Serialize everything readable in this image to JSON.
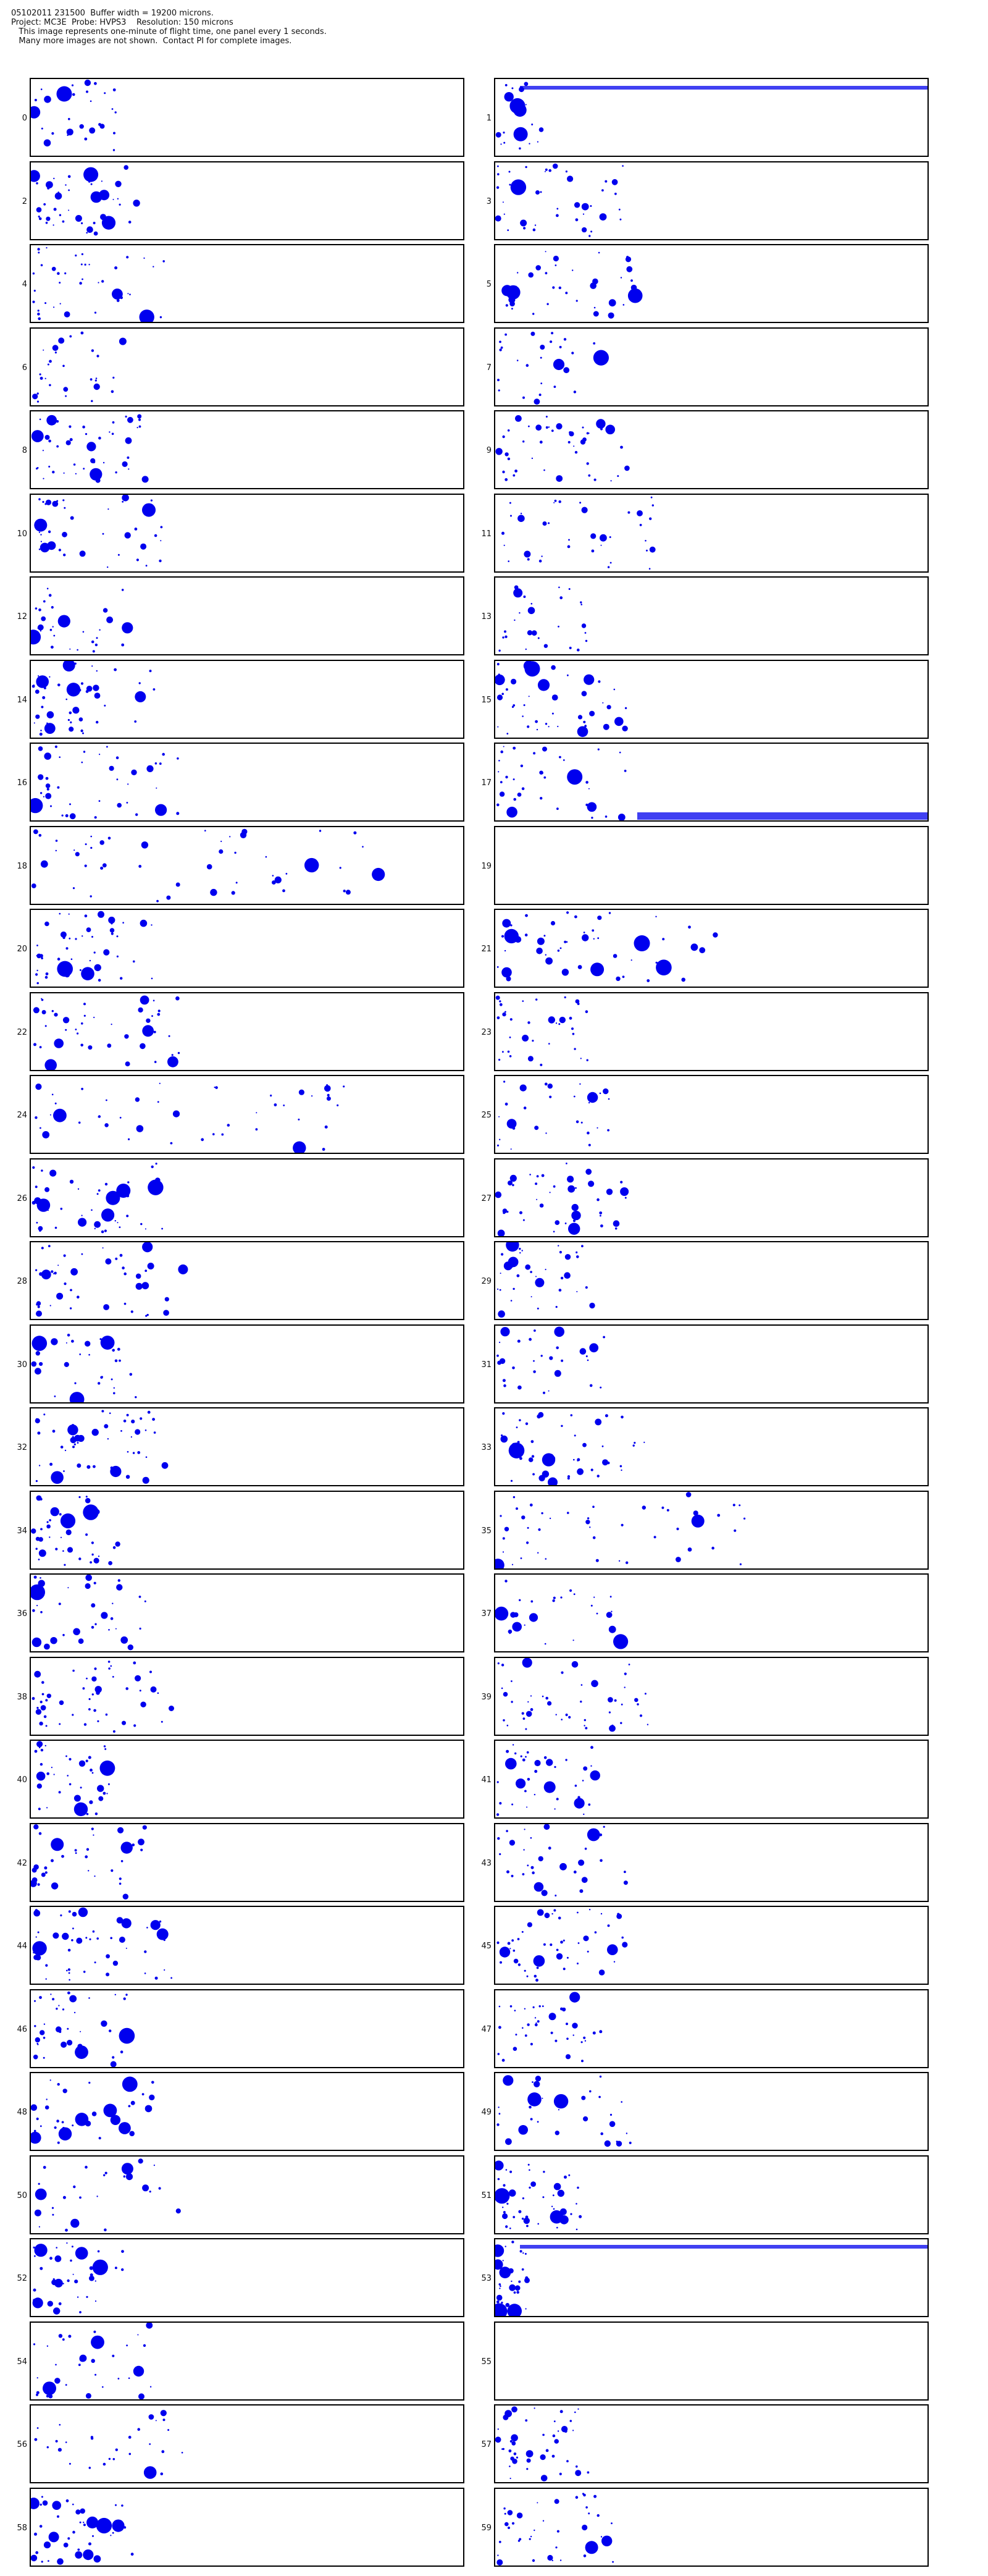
{
  "header": {
    "line1": "05102011 231500  Buffer width = 19200 microns.",
    "line2": "Project: MC3E  Probe: HVPS3    Resolution: 150 microns",
    "line3": "   This image represents one-minute of flight time, one panel every 1 seconds.",
    "line4": "   Many more images are not shown.  Contact PI for complete images."
  },
  "panels": [
    {
      "label": "0"
    },
    {
      "label": "1"
    },
    {
      "label": "2"
    },
    {
      "label": "3"
    },
    {
      "label": "4"
    },
    {
      "label": "5"
    },
    {
      "label": "6"
    },
    {
      "label": "7"
    },
    {
      "label": "8"
    },
    {
      "label": "9"
    },
    {
      "label": "10"
    },
    {
      "label": "11"
    },
    {
      "label": "12"
    },
    {
      "label": "13"
    },
    {
      "label": "14"
    },
    {
      "label": "15"
    },
    {
      "label": "16"
    },
    {
      "label": "17"
    },
    {
      "label": "18"
    },
    {
      "label": "19"
    },
    {
      "label": "20"
    },
    {
      "label": "21"
    },
    {
      "label": "22"
    },
    {
      "label": "23"
    },
    {
      "label": "24"
    },
    {
      "label": "25"
    },
    {
      "label": "26"
    },
    {
      "label": "27"
    },
    {
      "label": "28"
    },
    {
      "label": "29"
    },
    {
      "label": "30"
    },
    {
      "label": "31"
    },
    {
      "label": "32"
    },
    {
      "label": "33"
    },
    {
      "label": "34"
    },
    {
      "label": "35"
    },
    {
      "label": "36"
    },
    {
      "label": "37"
    },
    {
      "label": "38"
    },
    {
      "label": "39"
    },
    {
      "label": "40"
    },
    {
      "label": "41"
    },
    {
      "label": "42"
    },
    {
      "label": "43"
    },
    {
      "label": "44"
    },
    {
      "label": "45"
    },
    {
      "label": "46"
    },
    {
      "label": "47"
    },
    {
      "label": "48"
    },
    {
      "label": "49"
    },
    {
      "label": "50"
    },
    {
      "label": "51"
    },
    {
      "label": "52"
    },
    {
      "label": "53"
    },
    {
      "label": "54"
    },
    {
      "label": "55"
    },
    {
      "label": "56"
    },
    {
      "label": "57"
    },
    {
      "label": "58"
    },
    {
      "label": "59"
    }
  ],
  "colors": {
    "particle": "#0000ee",
    "border": "#000000",
    "background": "#ffffff"
  }
}
